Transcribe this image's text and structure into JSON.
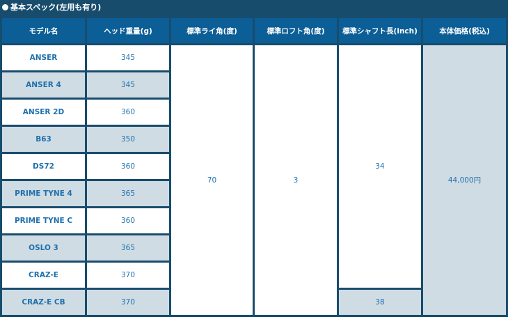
{
  "title": "基本スペック(左用も有り)",
  "headers": [
    "モデル名",
    "ヘッド重量(g)",
    "標準ライ角(度)",
    "標準ロフト角(度)",
    "標準シャフト長(inch)",
    "本体価格(税込)"
  ],
  "rows": [
    {
      "model": "ANSER",
      "weight": "345"
    },
    {
      "model": "ANSER 4",
      "weight": "345"
    },
    {
      "model": "ANSER 2D",
      "weight": "360"
    },
    {
      "model": "B63",
      "weight": "350"
    },
    {
      "model": "DS72",
      "weight": "360"
    },
    {
      "model": "PRIME TYNE 4",
      "weight": "365"
    },
    {
      "model": "PRIME TYNE C",
      "weight": "360"
    },
    {
      "model": "OSLO 3",
      "weight": "365"
    },
    {
      "model": "CRAZ-E",
      "weight": "370"
    },
    {
      "model": "CRAZ-E CB",
      "weight": "370"
    }
  ],
  "lie_angle": "70",
  "loft_angle": "3",
  "shaft_length": "34",
  "shaft_length_crazecb": "38",
  "price": "44,000円",
  "colors": {
    "background": "#184c6d",
    "header": "#0b5e96",
    "text": "#1f70ad",
    "alt_row": "#d0dce3"
  }
}
